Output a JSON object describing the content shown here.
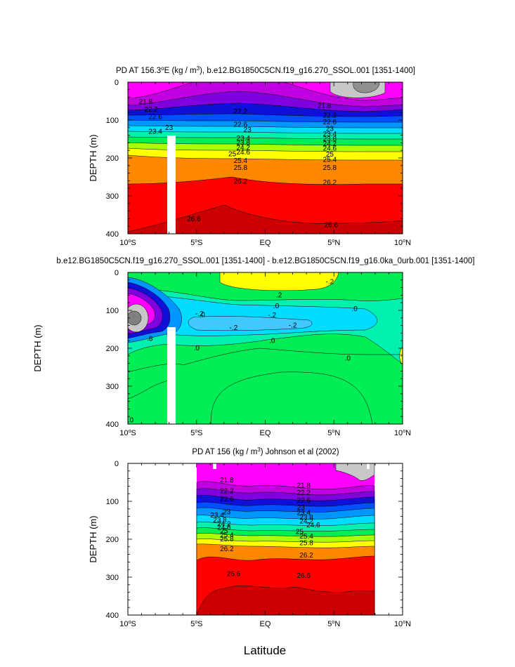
{
  "figure": {
    "shared_xlabel": "Latitude",
    "side_ylabel": "DEPTH (m)"
  },
  "chart_data": [
    {
      "type": "heatmap",
      "subtype": "filled-contour",
      "title_pre": "PD AT 156.3",
      "title_deg": "o",
      "title_mid": "E (kg / m",
      "title_sup": "3",
      "title_post": "), b.e12.BG1850C5CN.f19_g16.270_SSOL.001 [1351-1400]",
      "ylabel": "DEPTH (m)",
      "xlim": [
        -10,
        10
      ],
      "ylim": [
        0,
        400
      ],
      "x_ticks": [
        -10,
        -5,
        0,
        5,
        10
      ],
      "y_ticks": [
        0,
        100,
        200,
        300,
        400
      ],
      "contour_interval": 0.2,
      "levels": [
        21.8,
        22.2,
        22.6,
        23,
        23.4,
        23.8,
        24.2,
        24.6,
        25,
        25.4,
        25.8,
        26.2,
        26.6
      ],
      "contour_labels": [
        {
          "text": "21.8",
          "lat": -8.7,
          "depth": 52
        },
        {
          "text": "22.2",
          "lat": -8.3,
          "depth": 72
        },
        {
          "text": "22.6",
          "lat": -8.0,
          "depth": 92
        },
        {
          "text": "23",
          "lat": -7.0,
          "depth": 120
        },
        {
          "text": "23.4",
          "lat": -8.0,
          "depth": 131
        },
        {
          "text": "22.2",
          "lat": -1.8,
          "depth": 78
        },
        {
          "text": "22.6",
          "lat": -1.8,
          "depth": 112
        },
        {
          "text": "23",
          "lat": -1.3,
          "depth": 126
        },
        {
          "text": "23.4",
          "lat": -1.6,
          "depth": 148
        },
        {
          "text": "23.8",
          "lat": -1.6,
          "depth": 160
        },
        {
          "text": "24.2",
          "lat": -1.6,
          "depth": 173
        },
        {
          "text": "24.6",
          "lat": -1.6,
          "depth": 185
        },
        {
          "text": "25",
          "lat": -2.4,
          "depth": 190
        },
        {
          "text": "25.4",
          "lat": -1.8,
          "depth": 207
        },
        {
          "text": "25.8",
          "lat": -1.8,
          "depth": 226
        },
        {
          "text": "26.2",
          "lat": -1.8,
          "depth": 262
        },
        {
          "text": "26.6",
          "lat": -5.2,
          "depth": 361
        },
        {
          "text": "21.8",
          "lat": 4.3,
          "depth": 63
        },
        {
          "text": "22.2",
          "lat": 4.7,
          "depth": 88
        },
        {
          "text": "22.6",
          "lat": 4.7,
          "depth": 106
        },
        {
          "text": "23",
          "lat": 4.7,
          "depth": 123
        },
        {
          "text": "23.4",
          "lat": 4.7,
          "depth": 137
        },
        {
          "text": "23.8",
          "lat": 4.7,
          "depth": 150
        },
        {
          "text": "24.2",
          "lat": 4.7,
          "depth": 163
        },
        {
          "text": "24.6",
          "lat": 4.7,
          "depth": 175
        },
        {
          "text": "25",
          "lat": 4.7,
          "depth": 191
        },
        {
          "text": "25.4",
          "lat": 4.7,
          "depth": 205
        },
        {
          "text": "25.8",
          "lat": 4.7,
          "depth": 226
        },
        {
          "text": "26.2",
          "lat": 4.7,
          "depth": 265
        },
        {
          "text": "26.6",
          "lat": 4.8,
          "depth": 377
        }
      ],
      "x_tick_labels": [
        {
          "num": "10",
          "deg": "o",
          "hem": "S"
        },
        {
          "num": "5",
          "deg": "o",
          "hem": "S"
        },
        {
          "num": "EQ",
          "deg": "",
          "hem": ""
        },
        {
          "num": "5",
          "deg": "o",
          "hem": "N"
        },
        {
          "num": "10",
          "deg": "o",
          "hem": "N"
        }
      ],
      "y_tick_labels": [
        "0",
        "100",
        "200",
        "300",
        "400"
      ]
    },
    {
      "type": "heatmap",
      "subtype": "filled-contour-difference",
      "title": "b.e12.BG1850C5CN.f19_g16.270_SSOL.001 [1351-1400] - b.e12.BG1850C5CN.f19_g16.0ka_0urb.001 [1351-1400]",
      "xlim": [
        -10,
        10
      ],
      "ylim": [
        0,
        400
      ],
      "x_ticks": [
        -10,
        -5,
        0,
        5,
        10
      ],
      "y_ticks": [
        0,
        100,
        200,
        300,
        400
      ],
      "contour_labels": [
        {
          "text": ".2",
          "lat": 1.0,
          "depth": 60
        },
        {
          "text": "-.2",
          "lat": 4.7,
          "depth": 25
        },
        {
          "text": ".0",
          "lat": 0.8,
          "depth": 89
        },
        {
          "text": "-.2",
          "lat": 0.5,
          "depth": 113
        },
        {
          "text": ".0",
          "lat": 6.5,
          "depth": 96
        },
        {
          "text": "-.2",
          "lat": 2.0,
          "depth": 140
        },
        {
          "text": "-.2",
          "lat": -2.3,
          "depth": 146
        },
        {
          "text": ".0",
          "lat": -4.6,
          "depth": 112
        },
        {
          "text": "-.2",
          "lat": -4.8,
          "depth": 109
        },
        {
          "text": ".0",
          "lat": 0.5,
          "depth": 181
        },
        {
          "text": ".0",
          "lat": -5.0,
          "depth": 200
        },
        {
          "text": ".0",
          "lat": 6.0,
          "depth": 227
        },
        {
          "text": ".8",
          "lat": -8.4,
          "depth": 175
        },
        {
          "text": ".0",
          "lat": -9.8,
          "depth": 390
        }
      ],
      "x_tick_labels": [
        {
          "num": "10",
          "deg": "o",
          "hem": "S"
        },
        {
          "num": "5",
          "deg": "o",
          "hem": "S"
        },
        {
          "num": "EQ",
          "deg": "",
          "hem": ""
        },
        {
          "num": "5",
          "deg": "o",
          "hem": "N"
        },
        {
          "num": "10",
          "deg": "o",
          "hem": "N"
        }
      ],
      "y_tick_labels": [
        "0",
        "100",
        "200",
        "300",
        "400"
      ]
    },
    {
      "type": "heatmap",
      "subtype": "filled-contour-observed",
      "title_pre": "PD AT 156 (kg / m",
      "title_sup": "3",
      "title_post": ") Johnson et al (2002)",
      "ylabel": "DEPTH (m)",
      "xlim": [
        -10,
        10
      ],
      "ylim": [
        0,
        400
      ],
      "data_lat_range": [
        -5,
        8
      ],
      "x_ticks": [
        -10,
        -5,
        0,
        5,
        10
      ],
      "y_ticks": [
        0,
        100,
        200,
        300,
        400
      ],
      "contour_labels": [
        {
          "text": "21.8",
          "lat": -2.8,
          "depth": 44
        },
        {
          "text": "22.2",
          "lat": -2.8,
          "depth": 73
        },
        {
          "text": "22.6",
          "lat": -2.8,
          "depth": 94
        },
        {
          "text": "23",
          "lat": -2.8,
          "depth": 129
        },
        {
          "text": "23.4",
          "lat": -3.5,
          "depth": 137
        },
        {
          "text": "23.8",
          "lat": -3.3,
          "depth": 150
        },
        {
          "text": "24.2",
          "lat": -3.0,
          "depth": 160
        },
        {
          "text": "24.6",
          "lat": -3.0,
          "depth": 169
        },
        {
          "text": "25",
          "lat": -3.0,
          "depth": 179
        },
        {
          "text": "25.4",
          "lat": -2.8,
          "depth": 190
        },
        {
          "text": "25.8",
          "lat": -2.8,
          "depth": 200
        },
        {
          "text": "26.2",
          "lat": -2.8,
          "depth": 226
        },
        {
          "text": "26.6",
          "lat": -2.3,
          "depth": 292
        },
        {
          "text": "21.8",
          "lat": 2.8,
          "depth": 58
        },
        {
          "text": "22.2",
          "lat": 2.8,
          "depth": 78
        },
        {
          "text": "22.6",
          "lat": 2.8,
          "depth": 98
        },
        {
          "text": "23",
          "lat": 2.6,
          "depth": 117
        },
        {
          "text": "23.4",
          "lat": 2.8,
          "depth": 131
        },
        {
          "text": "23.8",
          "lat": 3.0,
          "depth": 143
        },
        {
          "text": "24.2",
          "lat": 3.0,
          "depth": 153
        },
        {
          "text": "24.6",
          "lat": 3.5,
          "depth": 163
        },
        {
          "text": "25",
          "lat": 2.5,
          "depth": 181
        },
        {
          "text": "25.4",
          "lat": 3.0,
          "depth": 193
        },
        {
          "text": "25.8",
          "lat": 3.0,
          "depth": 210
        },
        {
          "text": "26.2",
          "lat": 3.0,
          "depth": 243
        },
        {
          "text": "26.6",
          "lat": 2.8,
          "depth": 296
        }
      ],
      "x_tick_labels": [
        {
          "num": "10",
          "deg": "o",
          "hem": "S"
        },
        {
          "num": "5",
          "deg": "o",
          "hem": "S"
        },
        {
          "num": "EQ",
          "deg": "",
          "hem": ""
        },
        {
          "num": "5",
          "deg": "o",
          "hem": "N"
        },
        {
          "num": "10",
          "deg": "o",
          "hem": "N"
        }
      ],
      "y_tick_labels": [
        "0",
        "100",
        "200",
        "300",
        "400"
      ]
    }
  ],
  "colors": {
    "magenta": "#ff00ff",
    "violet": "#c000e0",
    "purple": "#8000e0",
    "deep_blue": "#1010d8",
    "blue": "#0050ff",
    "azure": "#0096ff",
    "cyan": "#00dcff",
    "aqua_green": "#00f0b0",
    "green": "#00ee55",
    "yellow_green": "#aaff00",
    "yellow": "#ffff00",
    "orange": "#ff8800",
    "red": "#ff0000",
    "dark_red": "#cc0000",
    "gray": "#909090",
    "light_gray": "#c8c8c8"
  }
}
